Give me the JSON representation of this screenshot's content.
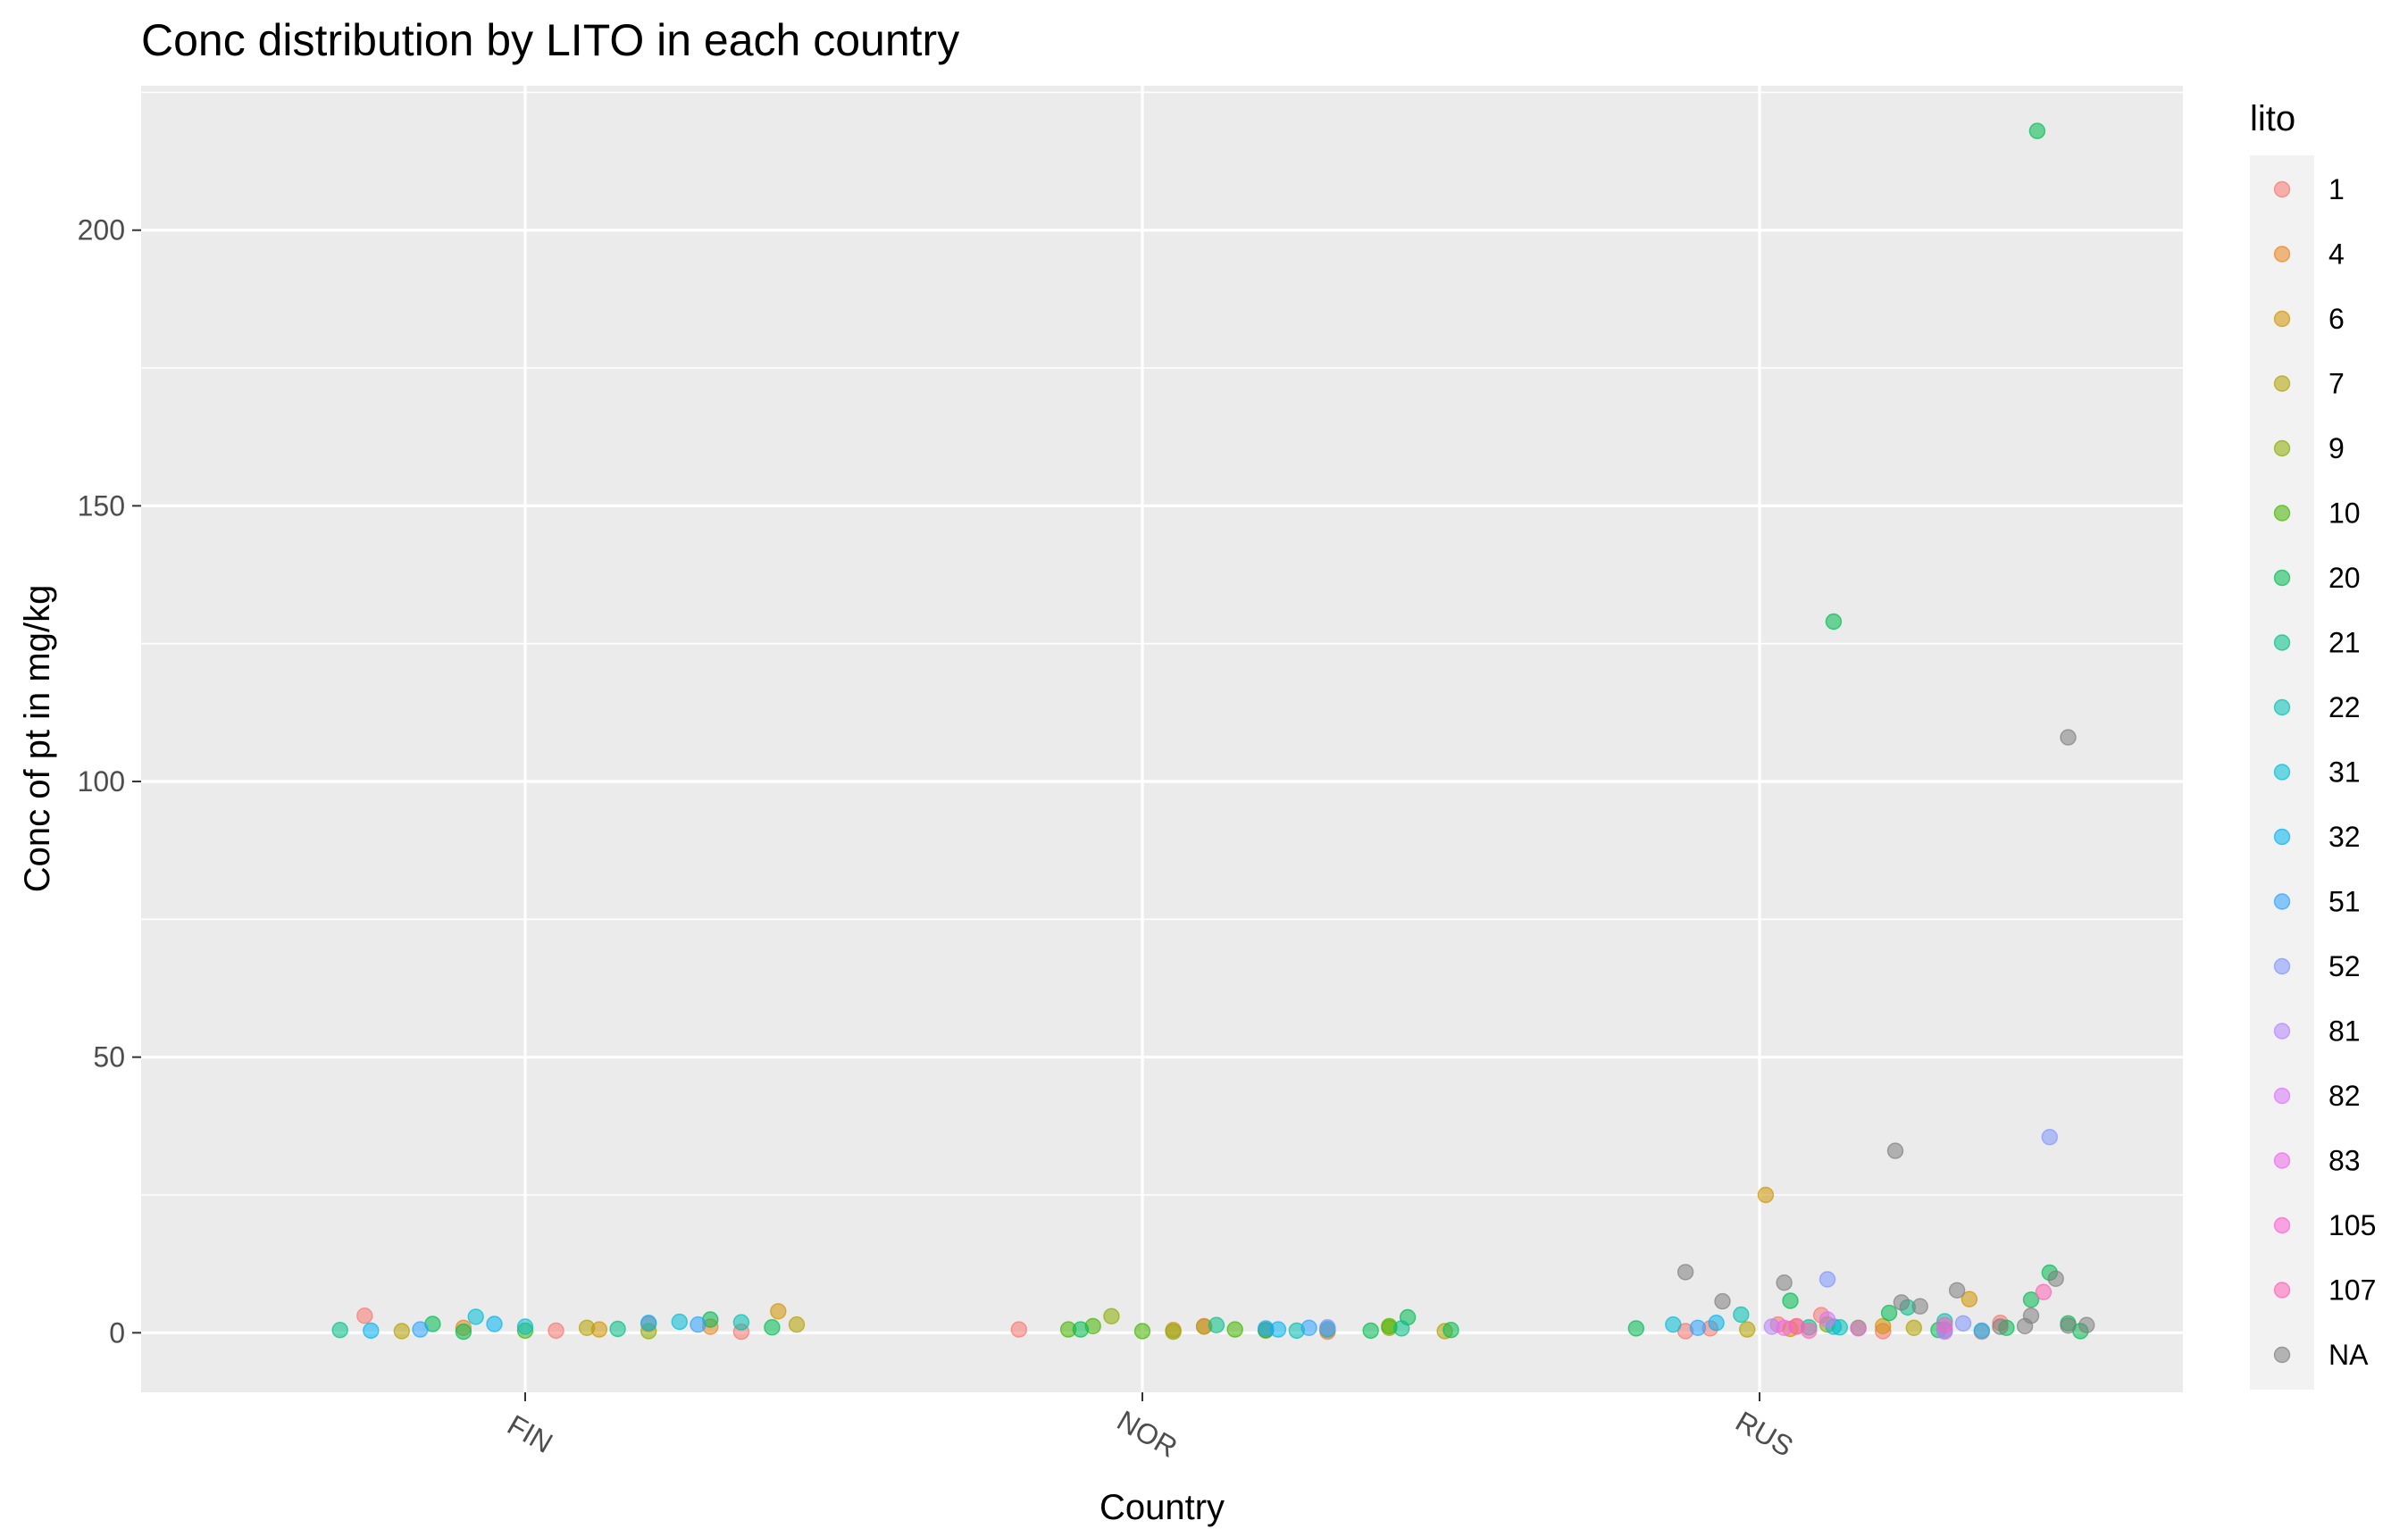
{
  "chart_data": {
    "type": "scatter",
    "title": "Conc distribution by LITO in each country",
    "xlabel": "Country",
    "ylabel": "Conc of  pt  in mg/kg",
    "categories": [
      "FIN",
      "NOR",
      "RUS"
    ],
    "ylim": [
      -10.8,
      226.2
    ],
    "y_ticks": [
      0,
      50,
      100,
      150,
      200
    ],
    "y_tick_labels": [
      "0",
      "50",
      "100",
      "150",
      "200"
    ],
    "grid": true,
    "point_alpha": 0.55,
    "legend": {
      "title": "lito",
      "placement": "right",
      "entries": [
        {
          "label": "1",
          "color": "#F8766D"
        },
        {
          "label": "4",
          "color": "#E7851E"
        },
        {
          "label": "6",
          "color": "#D09400"
        },
        {
          "label": "7",
          "color": "#B2A100"
        },
        {
          "label": "9",
          "color": "#89AC00"
        },
        {
          "label": "10",
          "color": "#45B500"
        },
        {
          "label": "20",
          "color": "#00BC51"
        },
        {
          "label": "21",
          "color": "#00C087"
        },
        {
          "label": "22",
          "color": "#00C0B2"
        },
        {
          "label": "31",
          "color": "#00BCD6"
        },
        {
          "label": "32",
          "color": "#00B3F2"
        },
        {
          "label": "51",
          "color": "#29A3FF"
        },
        {
          "label": "52",
          "color": "#7F96FF"
        },
        {
          "label": "81",
          "color": "#B385FF"
        },
        {
          "label": "82",
          "color": "#D874FD"
        },
        {
          "label": "83",
          "color": "#EF67EB"
        },
        {
          "label": "105",
          "color": "#FD61D3"
        },
        {
          "label": "107",
          "color": "#FF63B6"
        },
        {
          "label": "NA",
          "color": "#7F7F7F"
        }
      ]
    },
    "series": [
      {
        "name": "1",
        "points": [
          [
            -0.26,
            3.1
          ],
          [
            0.05,
            0.4
          ],
          [
            0.2,
            1.6
          ],
          [
            0.35,
            0.2
          ],
          [
            0.8,
            0.6
          ],
          [
            1.1,
            1.2
          ],
          [
            1.3,
            0.2
          ],
          [
            1.88,
            0.3
          ],
          [
            1.92,
            0.8
          ],
          [
            2.03,
            1.5
          ],
          [
            2.1,
            3.2
          ],
          [
            2.2,
            0.3
          ],
          [
            2.36,
            0.2
          ],
          [
            2.39,
            1.8
          ]
        ]
      },
      {
        "name": "4",
        "points": [
          [
            -0.1,
            0.9
          ],
          [
            0.3,
            1.1
          ],
          [
            1.05,
            0.5
          ],
          [
            2.06,
            1.2
          ],
          [
            2.3,
            0.4
          ]
        ]
      },
      {
        "name": "6",
        "points": [
          [
            0.12,
            0.6
          ],
          [
            0.41,
            3.9
          ],
          [
            2.01,
            25.0
          ],
          [
            2.05,
            0.7
          ],
          [
            2.2,
            1.2
          ],
          [
            2.34,
            6.1
          ]
        ]
      },
      {
        "name": "7",
        "points": [
          [
            -0.2,
            0.3
          ],
          [
            0.1,
            0.9
          ],
          [
            0.44,
            1.5
          ],
          [
            1.1,
            1.1
          ],
          [
            1.2,
            0.4
          ],
          [
            1.49,
            0.3
          ],
          [
            1.98,
            0.6
          ],
          [
            2.25,
            0.9
          ]
        ]
      },
      {
        "name": "9",
        "points": [
          [
            0.2,
            0.3
          ],
          [
            0.95,
            3.0
          ],
          [
            1.05,
            0.2
          ],
          [
            1.3,
            0.5
          ],
          [
            1.4,
            0.9
          ],
          [
            2.11,
            1.5
          ]
        ]
      },
      {
        "name": "10",
        "points": [
          [
            0.0,
            0.4
          ],
          [
            0.88,
            0.6
          ],
          [
            0.92,
            1.2
          ],
          [
            1.0,
            0.3
          ],
          [
            1.15,
            0.6
          ],
          [
            1.4,
            1.2
          ],
          [
            2.16,
            0.9
          ]
        ]
      },
      {
        "name": "20",
        "points": [
          [
            -0.15,
            1.6
          ],
          [
            -0.1,
            0.2
          ],
          [
            0.3,
            2.4
          ],
          [
            0.4,
            1.0
          ],
          [
            0.9,
            0.6
          ],
          [
            1.2,
            0.5
          ],
          [
            1.37,
            0.4
          ],
          [
            1.43,
            2.8
          ],
          [
            1.5,
            0.5
          ],
          [
            1.8,
            0.8
          ],
          [
            2.05,
            5.8
          ],
          [
            2.12,
            129.0
          ],
          [
            2.21,
            3.6
          ],
          [
            2.29,
            0.5
          ],
          [
            2.4,
            0.9
          ],
          [
            2.44,
            6.0
          ],
          [
            2.45,
            218.0
          ],
          [
            2.47,
            10.9
          ],
          [
            2.5,
            1.7
          ],
          [
            2.52,
            0.3
          ]
        ]
      },
      {
        "name": "21",
        "points": [
          [
            -0.3,
            0.5
          ],
          [
            0.15,
            0.7
          ],
          [
            1.12,
            1.4
          ],
          [
            1.42,
            0.8
          ],
          [
            2.08,
            1.0
          ],
          [
            2.24,
            4.6
          ]
        ]
      },
      {
        "name": "22",
        "points": [
          [
            0.35,
            1.9
          ],
          [
            1.25,
            0.4
          ],
          [
            1.97,
            3.3
          ],
          [
            2.13,
            1.0
          ],
          [
            2.3,
            2.1
          ]
        ]
      },
      {
        "name": "31",
        "points": [
          [
            -0.08,
            2.9
          ],
          [
            0.0,
            1.1
          ],
          [
            0.25,
            2.0
          ],
          [
            1.3,
            0.7
          ],
          [
            1.86,
            1.5
          ],
          [
            2.12,
            1.1
          ]
        ]
      },
      {
        "name": "32",
        "points": [
          [
            -0.25,
            0.4
          ],
          [
            -0.05,
            1.6
          ],
          [
            0.2,
            1.8
          ],
          [
            1.22,
            0.6
          ],
          [
            1.93,
            1.8
          ],
          [
            2.36,
            0.4
          ]
        ]
      },
      {
        "name": "51",
        "points": [
          [
            -0.17,
            0.6
          ],
          [
            0.28,
            1.5
          ],
          [
            1.2,
            0.8
          ],
          [
            1.27,
            0.9
          ],
          [
            1.9,
            0.9
          ]
        ]
      },
      {
        "name": "52",
        "points": [
          [
            1.3,
            1.0
          ],
          [
            2.11,
            9.7
          ],
          [
            2.3,
            0.6
          ],
          [
            2.33,
            1.7
          ],
          [
            2.47,
            35.5
          ]
        ]
      },
      {
        "name": "81",
        "points": [
          [
            2.02,
            1.1
          ],
          [
            2.3,
            0.2
          ]
        ]
      },
      {
        "name": "82",
        "points": [
          [
            2.11,
            2.4
          ]
        ]
      },
      {
        "name": "83",
        "points": [
          [
            2.04,
            0.9
          ],
          [
            2.16,
            0.8
          ]
        ]
      },
      {
        "name": "105",
        "points": [
          [
            2.06,
            1.1
          ]
        ]
      },
      {
        "name": "107",
        "points": [
          [
            2.08,
            0.4
          ],
          [
            2.3,
            1.4
          ],
          [
            2.46,
            7.4
          ]
        ]
      },
      {
        "name": "NA",
        "points": [
          [
            1.88,
            11.0
          ],
          [
            1.94,
            5.7
          ],
          [
            2.04,
            9.1
          ],
          [
            2.22,
            33.0
          ],
          [
            2.23,
            5.5
          ],
          [
            2.26,
            4.8
          ],
          [
            2.32,
            7.7
          ],
          [
            2.39,
            1.1
          ],
          [
            2.43,
            1.2
          ],
          [
            2.44,
            3.1
          ],
          [
            2.48,
            9.8
          ],
          [
            2.5,
            108.0
          ],
          [
            2.5,
            1.3
          ],
          [
            2.53,
            1.4
          ]
        ]
      }
    ]
  }
}
